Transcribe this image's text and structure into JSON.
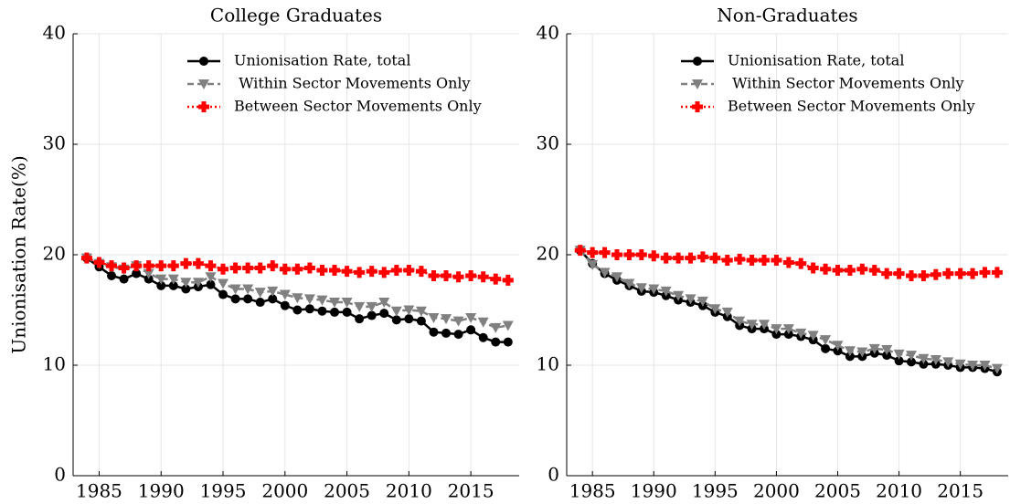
{
  "chart_data": [
    {
      "type": "line",
      "title": "College Graduates",
      "y_label": "Unionisation Rate(%)",
      "x": [
        1984,
        1985,
        1986,
        1987,
        1988,
        1989,
        1990,
        1991,
        1992,
        1993,
        1994,
        1995,
        1996,
        1997,
        1998,
        1999,
        2000,
        2001,
        2002,
        2003,
        2004,
        2005,
        2006,
        2007,
        2008,
        2009,
        2010,
        2011,
        2012,
        2013,
        2014,
        2015,
        2016,
        2017,
        2018
      ],
      "series": [
        {
          "name": "Unionisation Rate, total",
          "color": "#000000",
          "values": [
            19.7,
            18.9,
            18.1,
            17.8,
            18.3,
            17.8,
            17.2,
            17.2,
            16.9,
            17.1,
            17.3,
            16.4,
            16.0,
            16.0,
            15.7,
            16.0,
            15.4,
            15.0,
            15.1,
            14.9,
            14.8,
            14.8,
            14.2,
            14.5,
            14.7,
            14.1,
            14.2,
            14.0,
            13.0,
            12.9,
            12.8,
            13.2,
            12.5,
            12.1,
            12.1
          ]
        },
        {
          "name": " Within Sector Movements Only",
          "color": "#808080",
          "values": [
            19.7,
            19.2,
            18.9,
            18.7,
            19.0,
            18.3,
            17.8,
            17.8,
            17.5,
            17.5,
            18.0,
            17.4,
            16.9,
            16.9,
            16.6,
            16.7,
            16.4,
            16.1,
            16.0,
            15.9,
            15.7,
            15.7,
            15.3,
            15.3,
            15.7,
            14.9,
            15.0,
            14.9,
            14.3,
            14.2,
            14.0,
            14.3,
            13.9,
            13.4,
            13.6
          ]
        },
        {
          "name": "Between Sector Movements Only",
          "color": "#ff0000",
          "values": [
            19.7,
            19.3,
            19.0,
            18.8,
            19.0,
            19.0,
            19.0,
            19.0,
            19.2,
            19.2,
            19.0,
            18.7,
            18.8,
            18.8,
            18.8,
            19.0,
            18.7,
            18.7,
            18.8,
            18.6,
            18.6,
            18.5,
            18.4,
            18.5,
            18.4,
            18.6,
            18.6,
            18.5,
            18.1,
            18.1,
            18.0,
            18.1,
            18.0,
            17.8,
            17.7
          ]
        }
      ],
      "xlim": [
        1982.9,
        2018.9
      ],
      "ylim": [
        0,
        40
      ],
      "xticks": [
        1985,
        1990,
        1995,
        2000,
        2005,
        2010,
        2015
      ],
      "yticks": [
        0,
        10,
        20,
        30,
        40
      ],
      "grid": true
    },
    {
      "type": "line",
      "title": "Non-Graduates",
      "x": [
        1984,
        1985,
        1986,
        1987,
        1988,
        1989,
        1990,
        1991,
        1992,
        1993,
        1994,
        1995,
        1996,
        1997,
        1998,
        1999,
        2000,
        2001,
        2002,
        2003,
        2004,
        2005,
        2006,
        2007,
        2008,
        2009,
        2010,
        2011,
        2012,
        2013,
        2014,
        2015,
        2016,
        2017,
        2018
      ],
      "series": [
        {
          "name": "Unionisation Rate, total",
          "color": "#000000",
          "values": [
            20.4,
            19.2,
            18.3,
            17.7,
            17.2,
            16.7,
            16.6,
            16.3,
            15.9,
            15.7,
            15.4,
            14.8,
            14.4,
            13.6,
            13.3,
            13.3,
            12.8,
            12.8,
            12.6,
            12.3,
            11.5,
            11.3,
            10.8,
            10.8,
            11.1,
            10.9,
            10.4,
            10.3,
            10.1,
            10.1,
            10.0,
            9.8,
            9.8,
            9.7,
            9.4
          ]
        },
        {
          "name": " Within Sector Movements Only",
          "color": "#808080",
          "values": [
            20.4,
            19.1,
            18.4,
            18.0,
            17.4,
            17.0,
            16.9,
            16.7,
            16.3,
            16.0,
            15.8,
            15.1,
            14.8,
            14.0,
            13.7,
            13.7,
            13.3,
            13.3,
            12.9,
            12.7,
            12.3,
            11.8,
            11.3,
            11.2,
            11.5,
            11.4,
            11.0,
            10.9,
            10.6,
            10.5,
            10.3,
            10.1,
            10.0,
            10.0,
            9.7
          ]
        },
        {
          "name": "Between Sector Movements Only",
          "color": "#ff0000",
          "values": [
            20.4,
            20.2,
            20.2,
            20.0,
            20.0,
            20.0,
            19.9,
            19.7,
            19.7,
            19.7,
            19.8,
            19.7,
            19.5,
            19.6,
            19.5,
            19.5,
            19.5,
            19.3,
            19.2,
            18.8,
            18.7,
            18.6,
            18.6,
            18.7,
            18.6,
            18.3,
            18.3,
            18.1,
            18.1,
            18.2,
            18.3,
            18.3,
            18.3,
            18.4,
            18.4
          ]
        }
      ],
      "xlim": [
        1982.9,
        2018.9
      ],
      "ylim": [
        0,
        40
      ],
      "xticks": [
        1985,
        1990,
        1995,
        2000,
        2005,
        2010,
        2015
      ],
      "yticks": [
        0,
        10,
        20,
        30,
        40
      ],
      "grid": true
    }
  ]
}
